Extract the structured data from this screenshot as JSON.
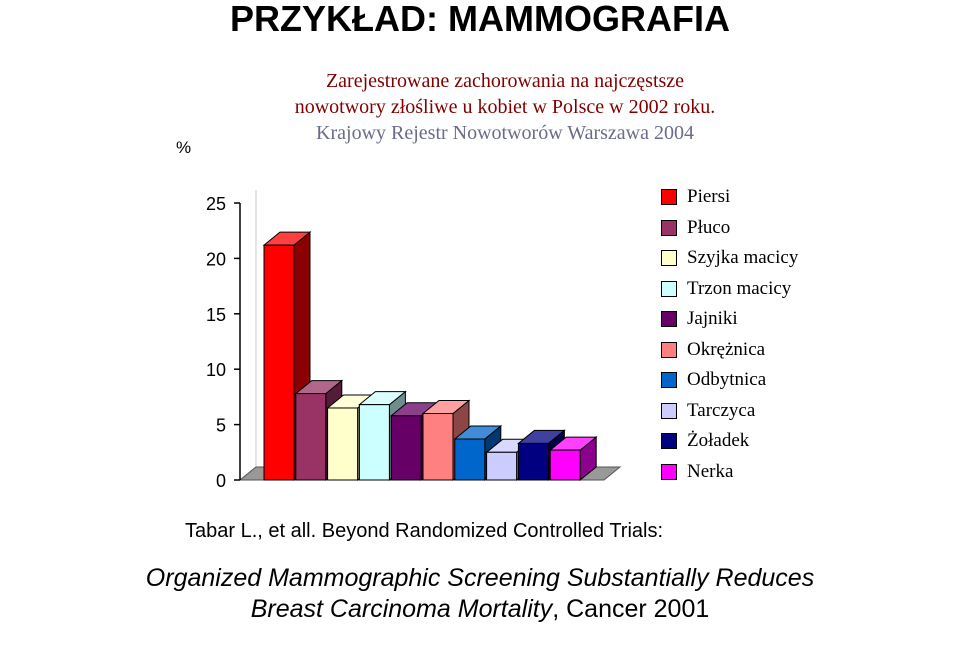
{
  "slide": {
    "title": "PRZYKŁAD: MAMMOGRAFIA",
    "citation": "Tabar L., et all. Beyond  Randomized  Controlled Trials:",
    "subtitle_line1": "Organized Mammographic Screening Substantially Reduces",
    "subtitle_line2_italic": "Breast Carcinoma Mortality",
    "subtitle_line2_rest": ", Cancer 2001"
  },
  "chart_data": {
    "type": "bar",
    "title_lines": [
      "Zarejestrowane zachorowania na najczęstsze",
      "nowotwory złośliwe u kobiet w Polsce w 2002 roku.",
      "Krajowy Rejestr Nowotworów Warszawa 2004"
    ],
    "ylabel": "%",
    "ylim": [
      0,
      25
    ],
    "yticks": [
      "0",
      "5",
      "10",
      "15",
      "20",
      "25"
    ],
    "grid": false,
    "legend_position": "right",
    "series": [
      {
        "name": "Piersi",
        "value": 21.2,
        "color": "#ff0000"
      },
      {
        "name": "Płuco",
        "value": 7.8,
        "color": "#993366"
      },
      {
        "name": "Szyjka macicy",
        "value": 6.5,
        "color": "#ffffcc"
      },
      {
        "name": "Trzon macicy",
        "value": 6.8,
        "color": "#ccffff"
      },
      {
        "name": "Jajniki",
        "value": 5.8,
        "color": "#660066"
      },
      {
        "name": "Okrężnica",
        "value": 6.0,
        "color": "#ff8080"
      },
      {
        "name": "Odbytnica",
        "value": 3.7,
        "color": "#0066cc"
      },
      {
        "name": "Tarczyca",
        "value": 2.5,
        "color": "#ccccff"
      },
      {
        "name": "Żoładek",
        "value": 3.3,
        "color": "#000080"
      },
      {
        "name": "Nerka",
        "value": 2.7,
        "color": "#ff00ff"
      }
    ]
  }
}
